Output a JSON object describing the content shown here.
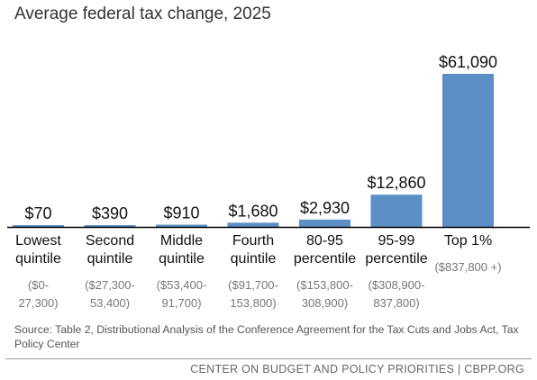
{
  "title": "Average federal tax change, 2025",
  "colors": {
    "bar": "#5b8fc5",
    "bar_edge": "#4a7bb0",
    "baseline": "#000000"
  },
  "chart_data": {
    "type": "bar",
    "title": "Average federal tax change, 2025",
    "xlabel": "",
    "ylabel": "",
    "ylim": [
      0,
      61090
    ],
    "grid": false,
    "categories": [
      "Lowest\nquintile",
      "Second\nquintile",
      "Middle\nquintile",
      "Fourth\nquintile",
      "80-95\npercentile",
      "95-99\npercentile",
      "Top 1%"
    ],
    "income_ranges": [
      "($0-\n27,300)",
      "($27,300-\n53,400)",
      "($53,400-\n91,700)",
      "($91,700-\n153,800)",
      "($153,800-\n308,900)",
      "($308,900-\n837,800)",
      "($837,800 +)"
    ],
    "values": [
      70,
      390,
      910,
      1680,
      2930,
      12860,
      61090
    ],
    "value_labels": [
      "$70",
      "$390",
      "$910",
      "$1,680",
      "$2,930",
      "$12,860",
      "$61,090"
    ]
  },
  "source": "Source: Table 2, Distributional Analysis of the Conference Agreement for the Tax Cuts and Jobs Act, Tax Policy Center",
  "footer": "CENTER ON BUDGET AND POLICY PRIORITIES | CBPP.ORG"
}
